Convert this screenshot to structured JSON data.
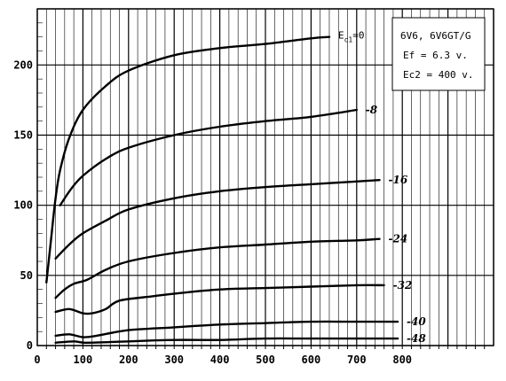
{
  "chart_data": {
    "type": "line",
    "tube": "6V6, 6V6GT/G",
    "conditions": [
      "Ef = 6.3 v.",
      "Ec2 = 400 v."
    ],
    "legend_prefix": "Ec1",
    "legend_placement": "top-right",
    "grid": true,
    "xlim": [
      0,
      1000
    ],
    "ylim": [
      0,
      240
    ],
    "x_ticks": [
      0,
      100,
      200,
      300,
      400,
      500,
      600,
      700,
      800
    ],
    "y_ticks": [
      0,
      50,
      100,
      150,
      200
    ],
    "series": [
      {
        "name": "=0",
        "points": [
          [
            20,
            45
          ],
          [
            30,
            75
          ],
          [
            40,
            105
          ],
          [
            50,
            125
          ],
          [
            70,
            148
          ],
          [
            100,
            168
          ],
          [
            150,
            185
          ],
          [
            200,
            196
          ],
          [
            300,
            207
          ],
          [
            400,
            212
          ],
          [
            500,
            215
          ],
          [
            600,
            219
          ],
          [
            640,
            220
          ]
        ]
      },
      {
        "name": "-8",
        "points": [
          [
            50,
            100
          ],
          [
            75,
            112
          ],
          [
            100,
            121
          ],
          [
            150,
            133
          ],
          [
            200,
            141
          ],
          [
            300,
            150
          ],
          [
            400,
            156
          ],
          [
            500,
            160
          ],
          [
            600,
            163
          ],
          [
            700,
            168
          ]
        ]
      },
      {
        "name": "-16",
        "points": [
          [
            40,
            62
          ],
          [
            70,
            72
          ],
          [
            100,
            80
          ],
          [
            150,
            89
          ],
          [
            200,
            97
          ],
          [
            300,
            105
          ],
          [
            400,
            110
          ],
          [
            500,
            113
          ],
          [
            600,
            115
          ],
          [
            700,
            117
          ],
          [
            750,
            118
          ]
        ]
      },
      {
        "name": "-24",
        "points": [
          [
            40,
            34
          ],
          [
            60,
            40
          ],
          [
            80,
            44
          ],
          [
            110,
            47
          ],
          [
            150,
            54
          ],
          [
            200,
            60
          ],
          [
            300,
            66
          ],
          [
            400,
            70
          ],
          [
            500,
            72
          ],
          [
            600,
            74
          ],
          [
            700,
            75
          ],
          [
            750,
            76
          ]
        ]
      },
      {
        "name": "-32",
        "points": [
          [
            40,
            24
          ],
          [
            70,
            26
          ],
          [
            100,
            23
          ],
          [
            120,
            23
          ],
          [
            150,
            26
          ],
          [
            180,
            32
          ],
          [
            250,
            35
          ],
          [
            300,
            37
          ],
          [
            400,
            40
          ],
          [
            500,
            41
          ],
          [
            600,
            42
          ],
          [
            700,
            43
          ],
          [
            760,
            43
          ]
        ]
      },
      {
        "name": "-40",
        "points": [
          [
            40,
            7
          ],
          [
            70,
            8
          ],
          [
            100,
            6
          ],
          [
            130,
            7
          ],
          [
            200,
            11
          ],
          [
            300,
            13
          ],
          [
            400,
            15
          ],
          [
            500,
            16
          ],
          [
            600,
            17
          ],
          [
            700,
            17
          ],
          [
            790,
            17
          ]
        ]
      },
      {
        "name": "-48",
        "points": [
          [
            40,
            2
          ],
          [
            80,
            3
          ],
          [
            110,
            2
          ],
          [
            200,
            3
          ],
          [
            300,
            4
          ],
          [
            400,
            4
          ],
          [
            500,
            5
          ],
          [
            600,
            5
          ],
          [
            700,
            5
          ],
          [
            790,
            5
          ]
        ]
      }
    ]
  }
}
